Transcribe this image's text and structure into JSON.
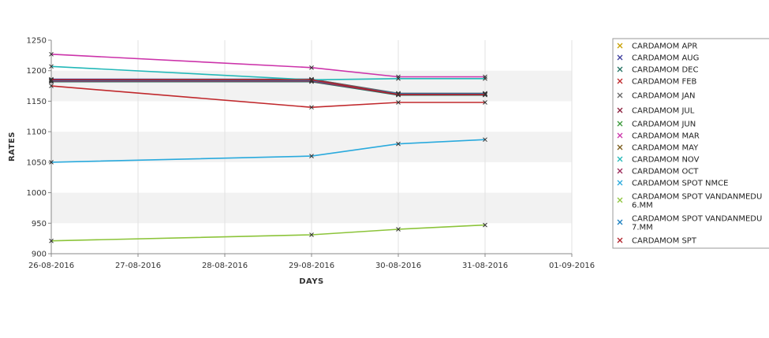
{
  "chart_data": {
    "type": "line",
    "title": "",
    "xlabel": "DAYS",
    "ylabel": "RATES",
    "xlim": [
      "26-08-2016",
      "01-09-2016"
    ],
    "ylim": [
      900,
      1250
    ],
    "x_ticks": [
      "26-08-2016",
      "27-08-2016",
      "28-08-2016",
      "29-08-2016",
      "30-08-2016",
      "31-08-2016",
      "01-09-2016"
    ],
    "y_ticks": [
      900,
      950,
      1000,
      1050,
      1100,
      1150,
      1200,
      1250
    ],
    "grid": true,
    "legend_position": "right",
    "x": [
      "26-08-2016",
      "29-08-2016",
      "30-08-2016",
      "31-08-2016"
    ],
    "series": [
      {
        "name": "CARDAMOM APR",
        "color": "#c8a000",
        "values": [
          1185,
          1185,
          1162,
          1162
        ]
      },
      {
        "name": "CARDAMOM AUG",
        "color": "#3c3c9c",
        "values": [
          1186,
          1186,
          1162,
          1162
        ]
      },
      {
        "name": "CARDAMOM DEC",
        "color": "#1f6f5f",
        "values": [
          1182,
          1182,
          1160,
          1160
        ]
      },
      {
        "name": "CARDAMOM FEB",
        "color": "#c0282c",
        "values": [
          1175,
          1140,
          1148,
          1148
        ]
      },
      {
        "name": "CARDAMOM JAN",
        "color": "#666666",
        "values": [
          1185,
          1186,
          1163,
          1163
        ]
      },
      {
        "name": "CARDAMOM JUL",
        "color": "#8a1d3c",
        "values": [
          1185,
          1185,
          1161,
          1161
        ]
      },
      {
        "name": "CARDAMOM JUN",
        "color": "#3a9a3a",
        "values": [
          1183,
          1183,
          1161,
          1161
        ]
      },
      {
        "name": "CARDAMOM MAR",
        "color": "#cc33aa",
        "values": [
          1227,
          1205,
          1190,
          1190
        ]
      },
      {
        "name": "CARDAMOM MAY",
        "color": "#7a5a1a",
        "values": [
          1184,
          1184,
          1162,
          1162
        ]
      },
      {
        "name": "CARDAMOM NOV",
        "color": "#22b8b8",
        "values": [
          1207,
          1185,
          1187,
          1187
        ]
      },
      {
        "name": "CARDAMOM OCT",
        "color": "#9c2a5a",
        "values": [
          1183,
          1183,
          1161,
          1161
        ]
      },
      {
        "name": "CARDAMOM SPOT NMCE",
        "color": "#2aaadd",
        "values": [
          1050,
          1060,
          1080,
          1087
        ]
      },
      {
        "name": "CARDAMOM SPOT VANDANMEDU 6.MM",
        "color": "#8cc43a",
        "values": [
          921,
          931,
          940,
          947
        ]
      },
      {
        "name": "CARDAMOM SPOT VANDANMEDU 7.MM",
        "color": "#1a7fc0",
        "values": [
          1184,
          1184,
          1162,
          1162
        ]
      },
      {
        "name": "CARDAMOM SPT",
        "color": "#b0202a",
        "values": [
          1185,
          1185,
          1161,
          1161
        ]
      }
    ]
  }
}
